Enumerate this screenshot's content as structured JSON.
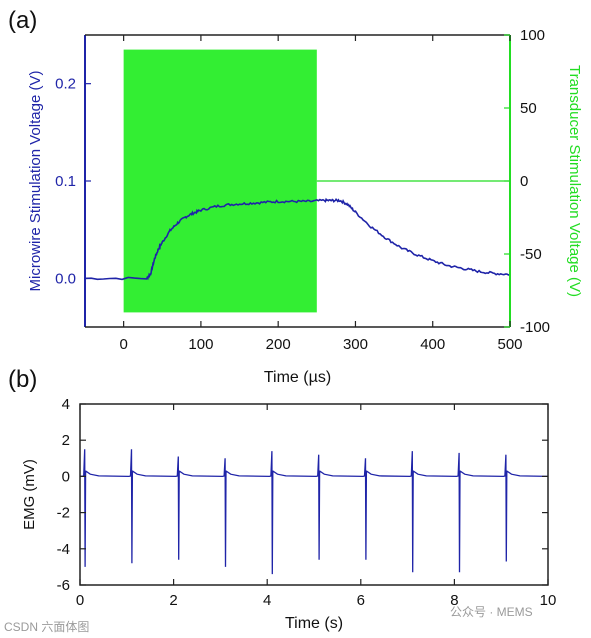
{
  "chart_data": [
    {
      "panel_label": "(a)",
      "type": "line",
      "xlabel": "Time (µs)",
      "ylabel_left": "Microwire Stimulation Voltage (V)",
      "ylabel_right": "Transducer Stimulation Voltage (V)",
      "xlim": [
        -50,
        500
      ],
      "ylim_left": [
        -0.05,
        0.25
      ],
      "ylim_right": [
        -100,
        100
      ],
      "x_ticks": [
        "0",
        "100",
        "200",
        "300",
        "400",
        "500"
      ],
      "y_left_ticks": [
        "0.0",
        "0.1",
        "0.2"
      ],
      "y_right_ticks": [
        "100",
        "50",
        "0",
        "-50",
        "-100"
      ],
      "colors": {
        "left_axis": "#1f24a8",
        "right_axis": "#22dd22",
        "pulse": "#33ee33"
      },
      "series": [
        {
          "axis": "left",
          "x": [
            -50,
            30,
            35,
            40,
            45,
            50,
            60,
            70,
            80,
            90,
            100,
            120,
            140,
            160,
            180,
            200,
            220,
            240,
            260,
            270,
            280,
            290,
            300,
            320,
            340,
            360,
            380,
            400,
            420,
            440,
            460,
            480,
            500
          ],
          "y": [
            0.0,
            0.0,
            0.005,
            0.02,
            0.03,
            0.037,
            0.049,
            0.057,
            0.063,
            0.067,
            0.07,
            0.074,
            0.076,
            0.077,
            0.078,
            0.079,
            0.079,
            0.079,
            0.08,
            0.08,
            0.08,
            0.076,
            0.068,
            0.053,
            0.041,
            0.031,
            0.024,
            0.018,
            0.013,
            0.01,
            0.007,
            0.005,
            0.004
          ]
        },
        {
          "axis": "right",
          "x": [
            0,
            0,
            250,
            250,
            500
          ],
          "y": [
            0,
            90,
            90,
            -90,
            0
          ],
          "shape": "filled rectangular pulse from 0 to 250 µs between -90 and 90 V, then flat at 0"
        }
      ]
    },
    {
      "panel_label": "(b)",
      "type": "line",
      "xlabel": "Time (s)",
      "ylabel": "EMG (mV)",
      "xlim": [
        0,
        10
      ],
      "ylim": [
        -6,
        4
      ],
      "x_ticks": [
        "0",
        "2",
        "4",
        "6",
        "8",
        "10"
      ],
      "y_ticks": [
        "4",
        "2",
        "0",
        "-2",
        "-4",
        "-6"
      ],
      "colors": {
        "line": "#1f24a8"
      },
      "spikes": [
        {
          "t": 0.1,
          "max": 1.5,
          "min": -5.0
        },
        {
          "t": 1.1,
          "max": 1.5,
          "min": -4.8
        },
        {
          "t": 2.1,
          "max": 1.1,
          "min": -4.6
        },
        {
          "t": 3.1,
          "max": 1.0,
          "min": -5.0
        },
        {
          "t": 4.1,
          "max": 1.4,
          "min": -5.4
        },
        {
          "t": 5.1,
          "max": 1.2,
          "min": -4.6
        },
        {
          "t": 6.1,
          "max": 1.0,
          "min": -4.6
        },
        {
          "t": 7.1,
          "max": 1.4,
          "min": -5.3
        },
        {
          "t": 8.1,
          "max": 1.3,
          "min": -5.3
        },
        {
          "t": 9.1,
          "max": 1.2,
          "min": -4.7
        }
      ]
    }
  ],
  "watermarks": {
    "left": "CSDN 六面体图",
    "right": "公众号 · MEMS"
  }
}
